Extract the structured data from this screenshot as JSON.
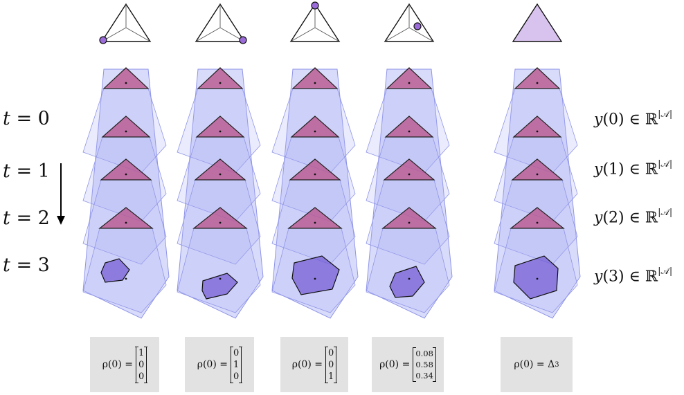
{
  "time_labels": [
    {
      "var": "t",
      "eq": " = 0"
    },
    {
      "var": "t",
      "eq": " = 1"
    },
    {
      "var": "t",
      "eq": " = 2"
    },
    {
      "var": "t",
      "eq": " = 3"
    }
  ],
  "y_labels": [
    {
      "var": "y",
      "arg": "(0) ∈ ℝ",
      "sup": "|𝒜|"
    },
    {
      "var": "y",
      "arg": "(1) ∈ ℝ",
      "sup": "|𝒜|"
    },
    {
      "var": "y",
      "arg": "(2) ∈ ℝ",
      "sup": "|𝒜|"
    },
    {
      "var": "y",
      "arg": "(3) ∈ ℝ",
      "sup": "|𝒜|"
    }
  ],
  "initial_states": [
    {
      "lhs": "ρ(0) = ",
      "vector": [
        "1",
        "0",
        "0"
      ]
    },
    {
      "lhs": "ρ(0) = ",
      "vector": [
        "0",
        "1",
        "0"
      ]
    },
    {
      "lhs": "ρ(0) = ",
      "vector": [
        "0",
        "0",
        "1"
      ]
    },
    {
      "lhs": "ρ(0) = ",
      "vector": [
        "0.08",
        "0.58",
        "0.34"
      ]
    },
    {
      "lhs": "ρ(0) = Δ",
      "sub": "3"
    }
  ],
  "colors": {
    "cone_fill": "#aab0f5",
    "cone_edge": "#8f95e8",
    "triangle_fill": "#b9568f",
    "region_fill": "#6a4fd0",
    "point_fill": "#9b6cd9",
    "simplex_fill": "#d8c2ee"
  }
}
